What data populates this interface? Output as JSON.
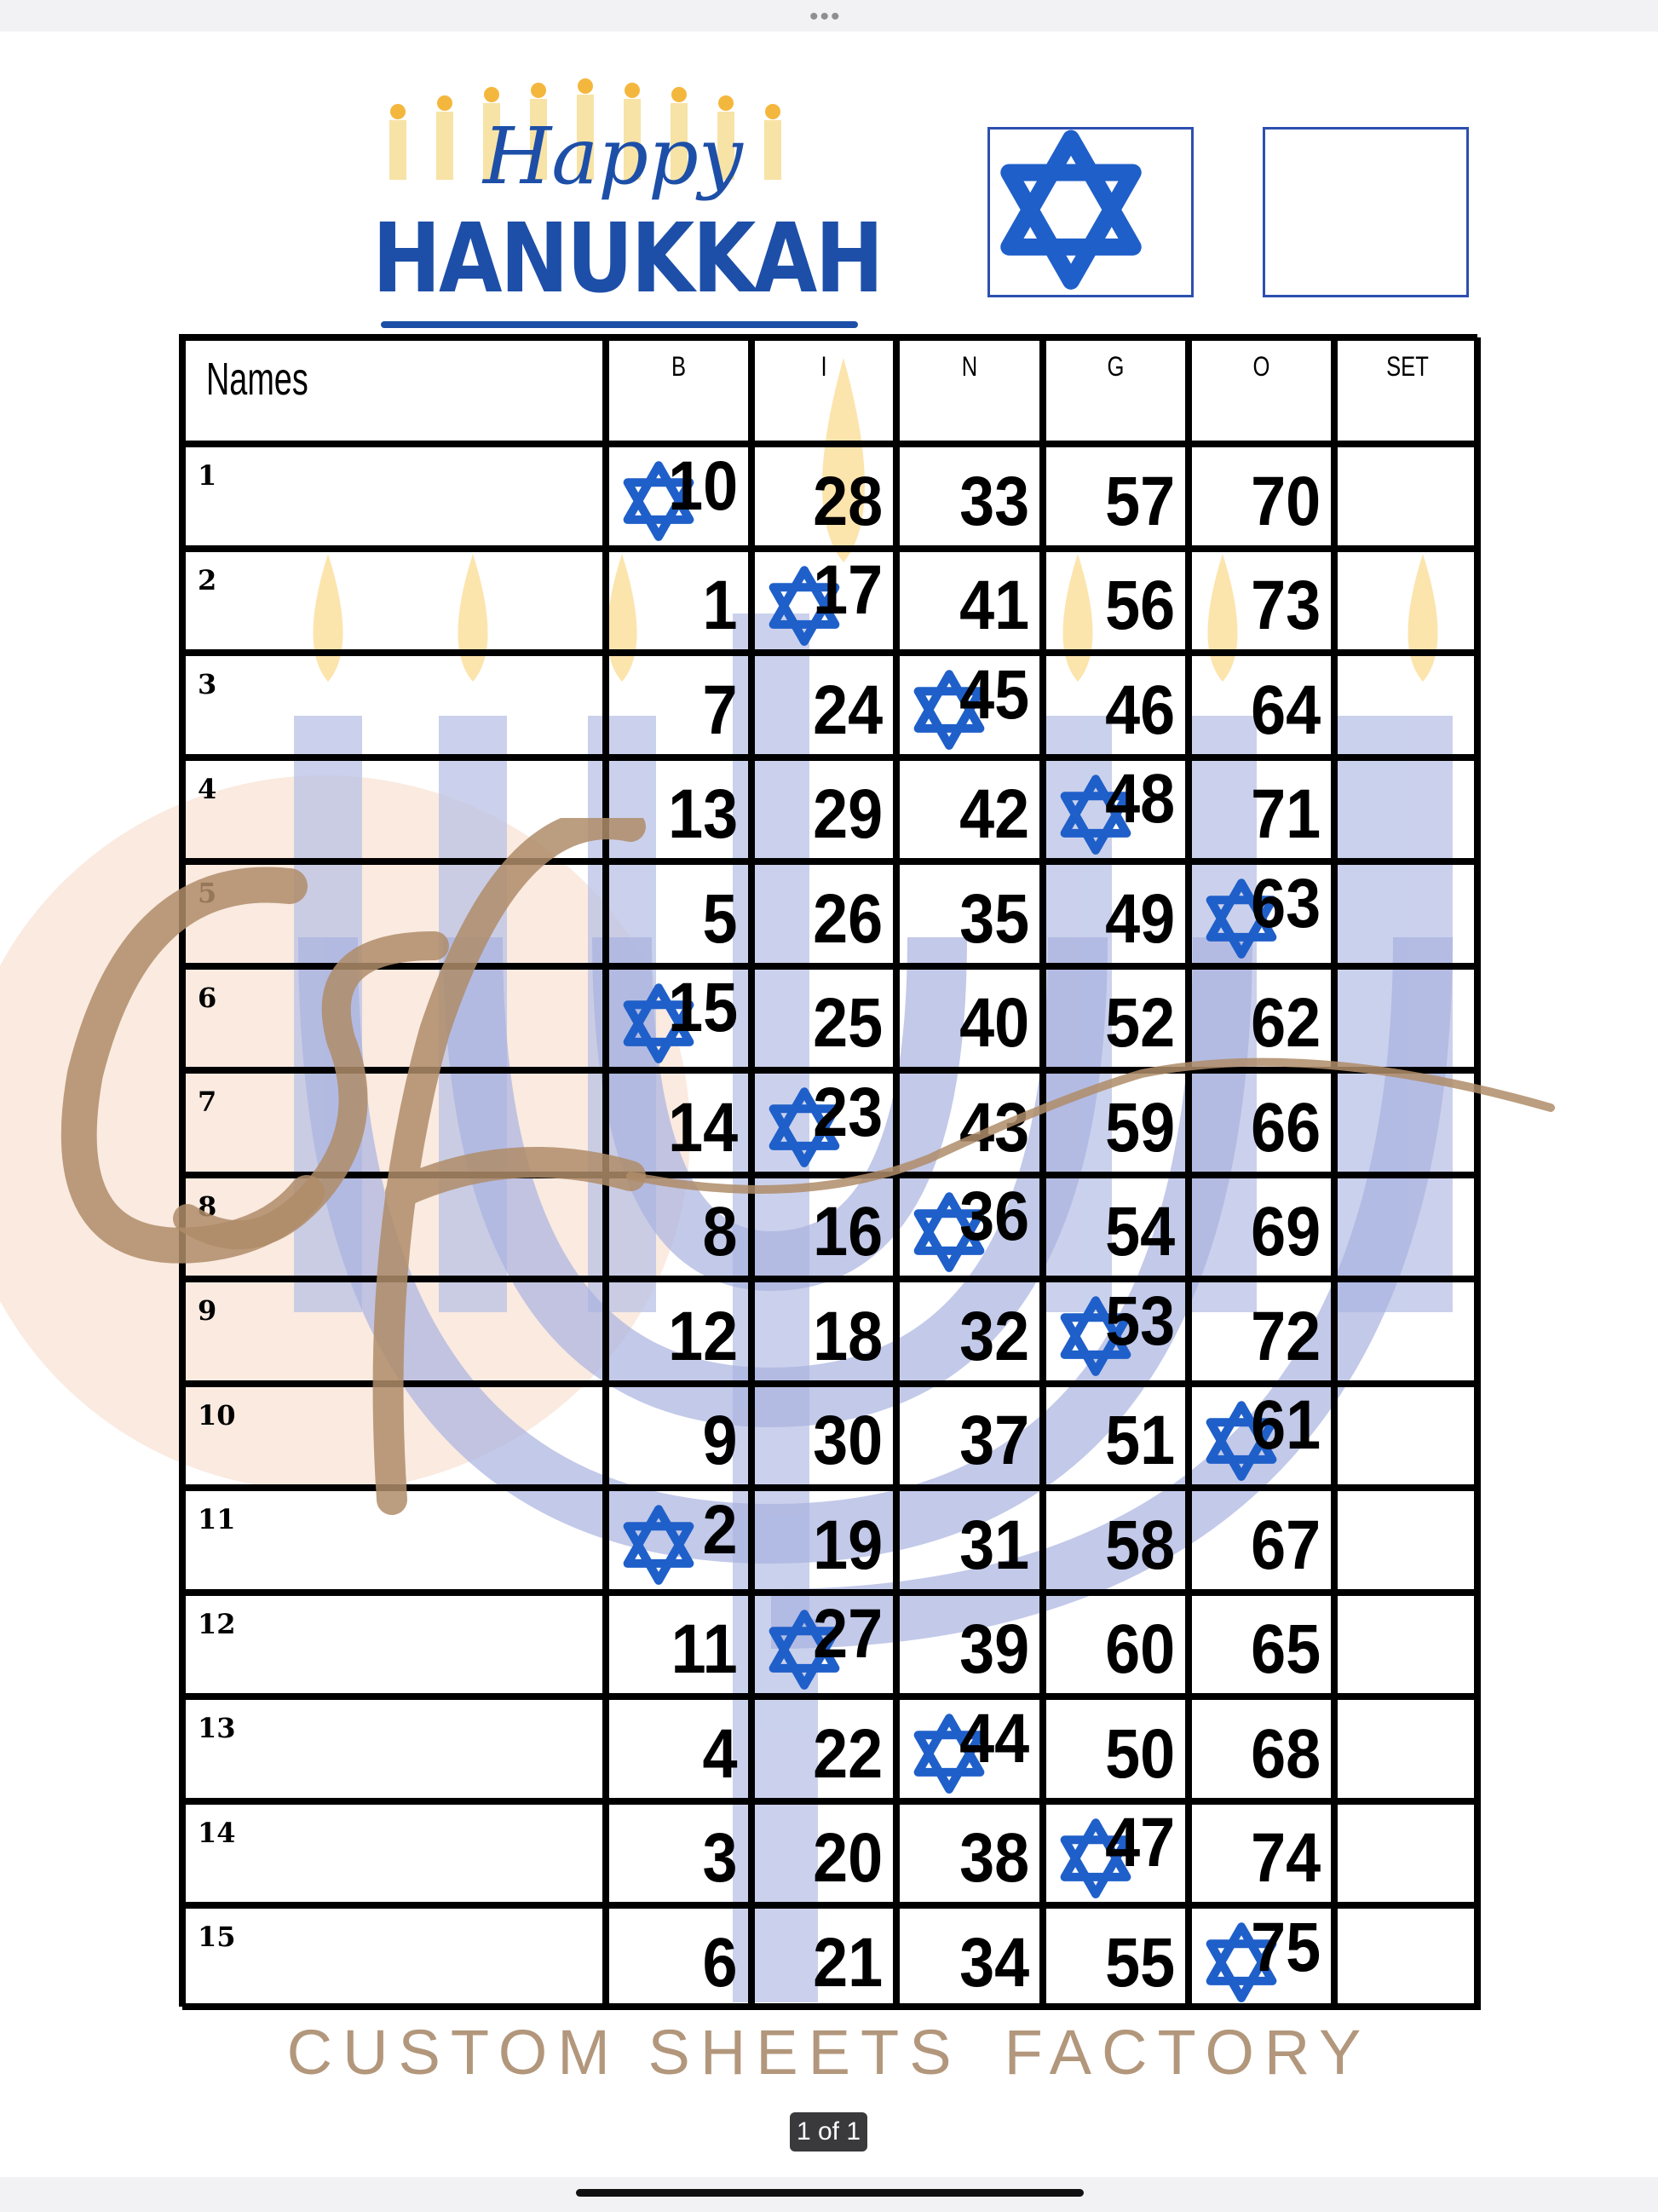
{
  "viewer": {
    "page_indicator": "1 of 1",
    "more_icon": "ellipsis-icon"
  },
  "header": {
    "logo": {
      "line1": "Happy",
      "line2": "HANUKKAH"
    },
    "boxes": [
      {
        "icon": "star-of-david-icon"
      },
      {
        "icon": ""
      }
    ]
  },
  "watermark": {
    "monogram": "csf",
    "line1": "CUSTOM SHEETS",
    "line2": "FACTORY"
  },
  "colors": {
    "accent": "#1d4fa8",
    "star": "#1f5fc9",
    "grid": "#000000"
  },
  "table": {
    "headers": [
      "Names",
      "B",
      "I",
      "N",
      "G",
      "O",
      "SET"
    ],
    "rows": [
      {
        "label": "1",
        "numbers": [
          "10",
          "28",
          "33",
          "57",
          "70"
        ],
        "marked": 0
      },
      {
        "label": "2",
        "numbers": [
          "1",
          "17",
          "41",
          "56",
          "73"
        ],
        "marked": 1
      },
      {
        "label": "3",
        "numbers": [
          "7",
          "24",
          "45",
          "46",
          "64"
        ],
        "marked": 2
      },
      {
        "label": "4",
        "numbers": [
          "13",
          "29",
          "42",
          "48",
          "71"
        ],
        "marked": 3
      },
      {
        "label": "5",
        "numbers": [
          "5",
          "26",
          "35",
          "49",
          "63"
        ],
        "marked": 4
      },
      {
        "label": "6",
        "numbers": [
          "15",
          "25",
          "40",
          "52",
          "62"
        ],
        "marked": 0
      },
      {
        "label": "7",
        "numbers": [
          "14",
          "23",
          "43",
          "59",
          "66"
        ],
        "marked": 1
      },
      {
        "label": "8",
        "numbers": [
          "8",
          "16",
          "36",
          "54",
          "69"
        ],
        "marked": 2
      },
      {
        "label": "9",
        "numbers": [
          "12",
          "18",
          "32",
          "53",
          "72"
        ],
        "marked": 3
      },
      {
        "label": "10",
        "numbers": [
          "9",
          "30",
          "37",
          "51",
          "61"
        ],
        "marked": 4
      },
      {
        "label": "11",
        "numbers": [
          "2",
          "19",
          "31",
          "58",
          "67"
        ],
        "marked": 0
      },
      {
        "label": "12",
        "numbers": [
          "11",
          "27",
          "39",
          "60",
          "65"
        ],
        "marked": 1
      },
      {
        "label": "13",
        "numbers": [
          "4",
          "22",
          "44",
          "50",
          "68"
        ],
        "marked": 2
      },
      {
        "label": "14",
        "numbers": [
          "3",
          "20",
          "38",
          "47",
          "74"
        ],
        "marked": 3
      },
      {
        "label": "15",
        "numbers": [
          "6",
          "21",
          "34",
          "55",
          "75"
        ],
        "marked": 4
      }
    ]
  }
}
